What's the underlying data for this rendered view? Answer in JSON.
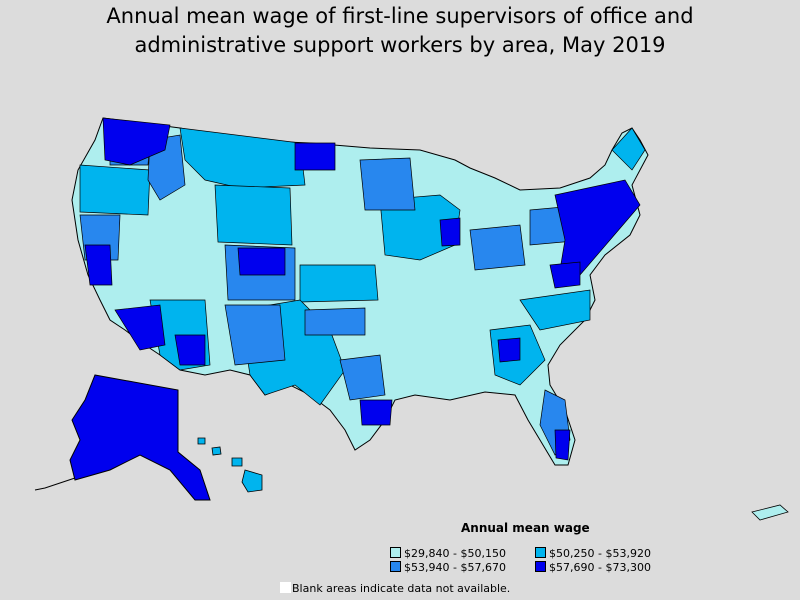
{
  "title_line1": "Annual mean wage of first-line supervisors of office and",
  "title_line2": "administrative support workers by area, May 2019",
  "legend": {
    "title": "Annual mean wage",
    "items": [
      {
        "label": "$29,840 - $50,150",
        "color": "#aeeeee"
      },
      {
        "label": "$50,250 - $53,920",
        "color": "#00b4ee"
      },
      {
        "label": "$53,940 - $57,670",
        "color": "#2887ee"
      },
      {
        "label": "$57,690 - $73,300",
        "color": "#0000ee"
      }
    ]
  },
  "note": "Blank areas indicate data not available."
}
